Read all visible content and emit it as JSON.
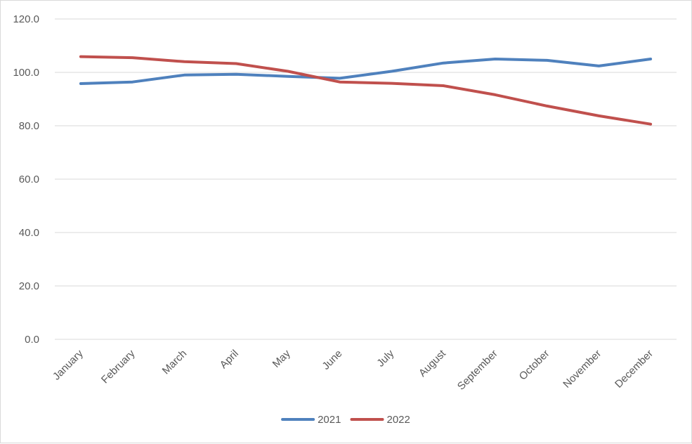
{
  "chart_data": {
    "type": "line",
    "title": "",
    "xlabel": "",
    "ylabel": "",
    "categories": [
      "January",
      "February",
      "March",
      "April",
      "May",
      "June",
      "July",
      "August",
      "September",
      "October",
      "November",
      "December"
    ],
    "ylim": [
      0,
      120
    ],
    "yticks": [
      "0.0",
      "20.0",
      "40.0",
      "60.0",
      "80.0",
      "100.0",
      "120.0"
    ],
    "grid": true,
    "legend_position": "bottom",
    "series": [
      {
        "name": "2021",
        "color": "#4f81bd",
        "values": [
          95.8,
          96.4,
          99.0,
          99.3,
          98.5,
          97.8,
          100.4,
          103.5,
          105.0,
          104.5,
          102.4,
          105.0
        ]
      },
      {
        "name": "2022",
        "color": "#c0504d",
        "values": [
          105.9,
          105.5,
          104.0,
          103.3,
          100.4,
          96.4,
          95.9,
          95.0,
          91.6,
          87.4,
          83.7,
          80.6
        ]
      }
    ]
  }
}
